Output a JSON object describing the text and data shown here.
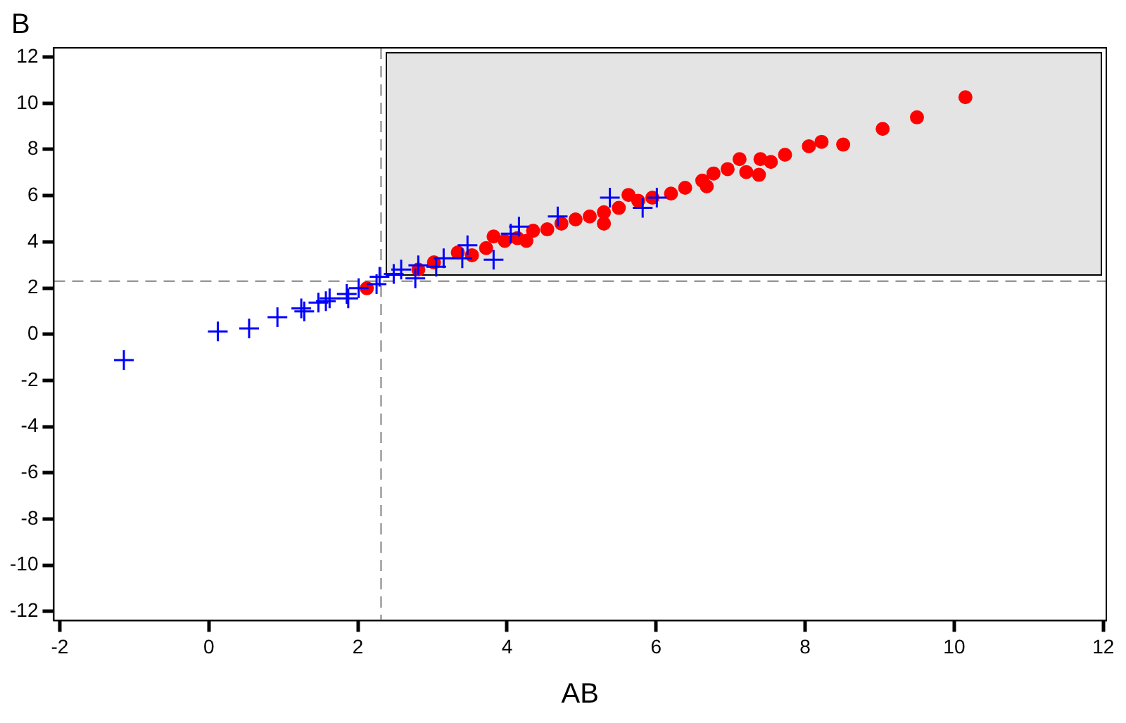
{
  "chart_data": {
    "type": "scatter",
    "xlabel": "AB",
    "ylabel": "B",
    "xlim": [
      -2.08,
      12.04
    ],
    "ylim": [
      -12.4,
      12.4
    ],
    "xticks": [
      -2,
      0,
      2,
      4,
      6,
      8,
      10,
      12
    ],
    "yticks": [
      -12,
      -10,
      -8,
      -6,
      -4,
      -2,
      0,
      2,
      4,
      6,
      8,
      10,
      12
    ],
    "grid": false,
    "legend": false,
    "ref_lines": [
      {
        "axis": "x",
        "value": 2.31,
        "color": "#808080",
        "line_style": "dashed"
      },
      {
        "axis": "y",
        "value": 2.3,
        "color": "#808080",
        "line_style": "dashed"
      }
    ],
    "series": [
      {
        "color": "#0000ff",
        "marker": "cross",
        "x": [
          -1.14,
          0.12,
          0.54,
          0.92,
          1.24,
          1.28,
          1.47,
          1.57,
          1.62,
          1.85,
          1.87,
          2.01,
          2.25,
          2.29,
          2.48,
          2.58,
          2.77,
          2.81,
          3.05,
          3.15,
          3.4,
          3.47,
          3.82,
          4.05,
          4.16,
          4.68,
          5.38,
          5.82,
          6.01
        ],
        "values": [
          -1.12,
          0.12,
          0.25,
          0.74,
          1.12,
          0.99,
          1.37,
          1.43,
          1.55,
          1.74,
          1.55,
          1.99,
          2.17,
          2.49,
          2.61,
          2.8,
          2.42,
          2.98,
          2.92,
          3.29,
          3.29,
          3.85,
          3.23,
          4.35,
          4.66,
          5.1,
          5.91,
          5.47,
          5.91
        ]
      },
      {
        "color": "#ff0000",
        "marker": "circle",
        "x": [
          2.12,
          2.81,
          3.02,
          3.34,
          3.53,
          3.72,
          3.82,
          3.97,
          4.14,
          4.26,
          4.35,
          4.54,
          4.73,
          4.92,
          5.11,
          5.3,
          5.3,
          5.5,
          5.63,
          5.76,
          5.95,
          6.2,
          6.39,
          6.62,
          6.68,
          6.77,
          6.96,
          7.12,
          7.21,
          7.38,
          7.4,
          7.54,
          7.73,
          8.05,
          8.22,
          8.51,
          9.04,
          9.5,
          10.15
        ],
        "values": [
          1.99,
          2.8,
          3.11,
          3.54,
          3.42,
          3.73,
          4.23,
          4.04,
          4.16,
          4.04,
          4.48,
          4.54,
          4.79,
          4.97,
          5.1,
          5.28,
          4.79,
          5.47,
          6.03,
          5.78,
          5.91,
          6.09,
          6.34,
          6.65,
          6.4,
          6.96,
          7.15,
          7.58,
          7.02,
          6.9,
          7.58,
          7.46,
          7.77,
          8.14,
          8.33,
          8.21,
          8.89,
          9.39,
          10.26
        ]
      }
    ]
  }
}
